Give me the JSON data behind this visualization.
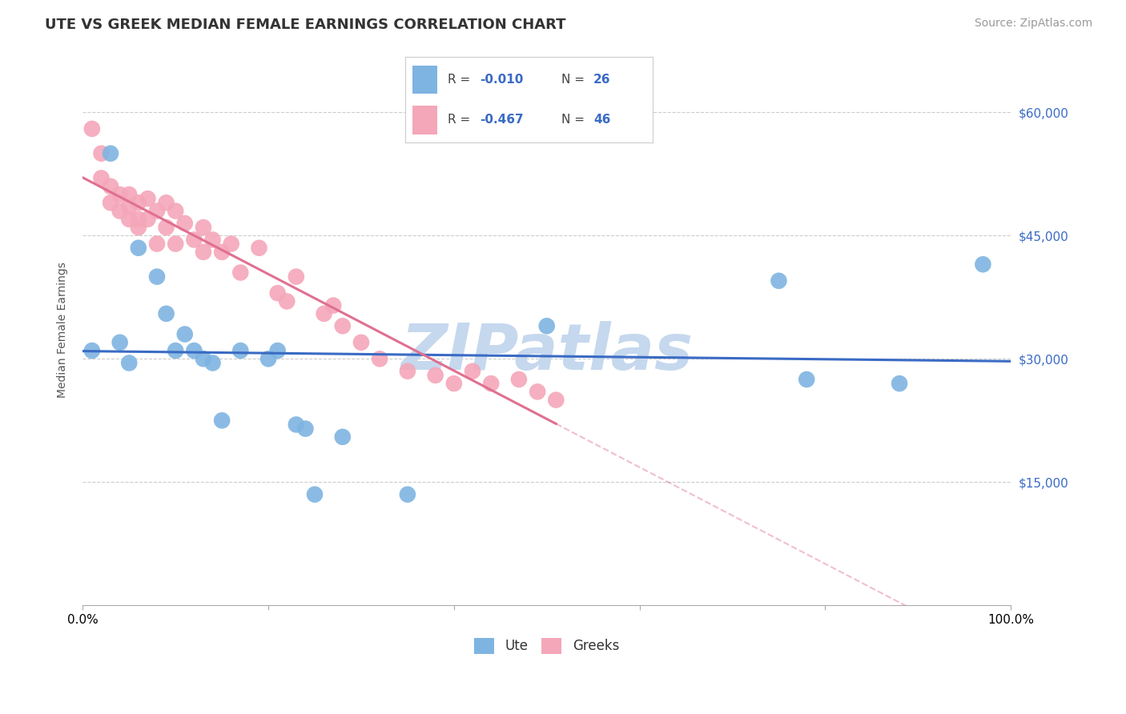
{
  "title": "UTE VS GREEK MEDIAN FEMALE EARNINGS CORRELATION CHART",
  "source_text": "Source: ZipAtlas.com",
  "ylabel": "Median Female Earnings",
  "ytick_labels": [
    "$15,000",
    "$30,000",
    "$45,000",
    "$60,000"
  ],
  "ytick_values": [
    15000,
    30000,
    45000,
    60000
  ],
  "ymin": 0,
  "ymax": 67000,
  "xmin": 0.0,
  "xmax": 1.0,
  "legend_r_ute": "-0.010",
  "legend_n_ute": "26",
  "legend_r_greek": "-0.467",
  "legend_n_greek": "46",
  "ute_color": "#7EB4E2",
  "greek_color": "#F4A7B9",
  "ute_line_color": "#3A6BC4",
  "greek_line_color": "#E07090",
  "watermark_color": "#C5D8EE",
  "watermark_text": "ZIPatlas",
  "background_color": "#FFFFFF",
  "grid_color": "#CCCCCC",
  "ute_x": [
    0.01,
    0.03,
    0.04,
    0.05,
    0.06,
    0.08,
    0.09,
    0.1,
    0.11,
    0.12,
    0.13,
    0.14,
    0.15,
    0.17,
    0.2,
    0.21,
    0.23,
    0.24,
    0.25,
    0.28,
    0.35,
    0.5,
    0.75,
    0.78,
    0.88,
    0.97
  ],
  "ute_y": [
    31000,
    55000,
    32000,
    29500,
    43500,
    40000,
    35500,
    31000,
    33000,
    31000,
    30000,
    29500,
    22500,
    31000,
    30000,
    31000,
    22000,
    21500,
    13500,
    20500,
    13500,
    34000,
    39500,
    27500,
    27000,
    41500
  ],
  "greek_x": [
    0.01,
    0.02,
    0.02,
    0.03,
    0.03,
    0.04,
    0.04,
    0.05,
    0.05,
    0.05,
    0.06,
    0.06,
    0.06,
    0.07,
    0.07,
    0.08,
    0.08,
    0.09,
    0.09,
    0.1,
    0.1,
    0.11,
    0.12,
    0.13,
    0.13,
    0.14,
    0.15,
    0.16,
    0.17,
    0.19,
    0.21,
    0.22,
    0.23,
    0.26,
    0.27,
    0.28,
    0.3,
    0.32,
    0.35,
    0.38,
    0.4,
    0.42,
    0.44,
    0.47,
    0.49,
    0.51
  ],
  "greek_y": [
    58000,
    55000,
    52000,
    51000,
    49000,
    50000,
    48000,
    50000,
    48500,
    47000,
    49000,
    47000,
    46000,
    49500,
    47000,
    48000,
    44000,
    49000,
    46000,
    48000,
    44000,
    46500,
    44500,
    46000,
    43000,
    44500,
    43000,
    44000,
    40500,
    43500,
    38000,
    37000,
    40000,
    35500,
    36500,
    34000,
    32000,
    30000,
    28500,
    28000,
    27000,
    28500,
    27000,
    27500,
    26000,
    25000
  ],
  "title_fontsize": 13,
  "axis_label_fontsize": 10,
  "tick_fontsize": 11,
  "source_fontsize": 10
}
